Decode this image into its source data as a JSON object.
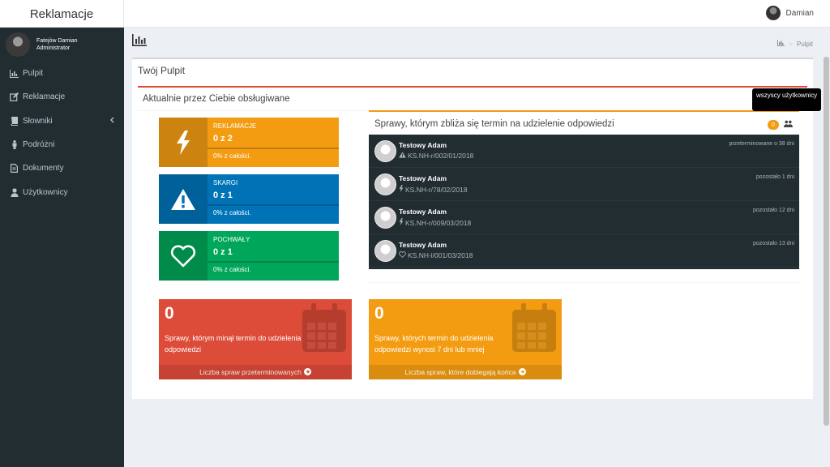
{
  "header": {
    "brand": "Reklamacje",
    "user_name": "Damian"
  },
  "sidebar": {
    "user": {
      "name": "Fatejów Damian",
      "role": "Administrator"
    },
    "items": [
      {
        "label": "Pulpit",
        "icon": "bar-chart-icon"
      },
      {
        "label": "Reklamacje",
        "icon": "edit-icon"
      },
      {
        "label": "Słowniki",
        "icon": "book-icon"
      },
      {
        "label": "Podróżni",
        "icon": "male-icon"
      },
      {
        "label": "Dokumenty",
        "icon": "file-icon"
      },
      {
        "label": "Użytkownicy",
        "icon": "user-icon"
      }
    ]
  },
  "breadcrumb": {
    "current": "Pulpit",
    "separator": ">"
  },
  "main": {
    "title": "Twój Pulpit",
    "section_title": "Aktualnie przez Ciebie obsługiwane",
    "info_boxes": [
      {
        "label": "REKLAMACJE",
        "number": "0 z 2",
        "desc": "0% z całości.",
        "color": "#f39c12",
        "icon": "bolt-icon"
      },
      {
        "label": "SKARGI",
        "number": "0 z 1",
        "desc": "0% z całości.",
        "color": "#0073b7",
        "icon": "warning-icon"
      },
      {
        "label": "POCHWAŁY",
        "number": "0 z 1",
        "desc": "0% z całości.",
        "color": "#00a65a",
        "icon": "heart-icon"
      }
    ],
    "deadlines": {
      "title": "Sprawy, którym zbliża się termin na udzielenie odpowiedzi",
      "badge": "0",
      "tooltip": "wszyscy użytkownicy",
      "items": [
        {
          "name": "Testowy Adam",
          "case": "KS.NH-r/002/01/2018",
          "case_icon": "warning-icon",
          "status": "przeterminowane o 38 dni"
        },
        {
          "name": "Testowy Adam",
          "case": "KS.NH-r/78/02/2018",
          "case_icon": "bolt-icon",
          "status": "pozostało 1 dni"
        },
        {
          "name": "Testowy Adam",
          "case": "KS.NH-r/009/03/2018",
          "case_icon": "bolt-icon",
          "status": "pozostało 12 dni"
        },
        {
          "name": "Testowy Adam",
          "case": "KS.NH-l/001/03/2018",
          "case_icon": "heart-icon",
          "status": "pozostało 13 dni"
        }
      ]
    },
    "small_boxes": [
      {
        "number": "0",
        "text": "Sprawy, którym minął termin do udzielenia odpowiedzi",
        "footer": "Liczba spraw przeterminowanych",
        "color": "#dd4b39"
      },
      {
        "number": "0",
        "text": "Sprawy, których termin do udzielenia odpowiedzi wynosi 7 dni lub mniej",
        "footer": "Liczba spraw, które dobiegają końca",
        "color": "#f39c12"
      }
    ]
  }
}
